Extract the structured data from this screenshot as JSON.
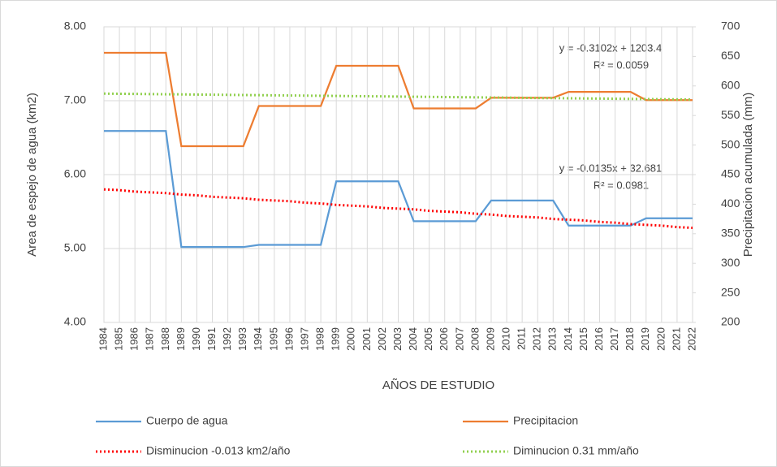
{
  "chart_data": {
    "type": "line",
    "categories": [
      "1984",
      "1985",
      "1986",
      "1987",
      "1988",
      "1989",
      "1990",
      "1991",
      "1992",
      "1993",
      "1994",
      "1995",
      "1996",
      "1997",
      "1998",
      "1999",
      "2000",
      "2001",
      "2002",
      "2003",
      "2004",
      "2005",
      "2006",
      "2007",
      "2008",
      "2009",
      "2010",
      "2011",
      "2012",
      "2013",
      "2014",
      "2015",
      "2016",
      "2017",
      "2018",
      "2019",
      "2020",
      "2021",
      "2022"
    ],
    "series": [
      {
        "name": "Cuerpo de agua",
        "color": "#5b9bd5",
        "style": "solid",
        "values": [
          6.59,
          6.59,
          6.59,
          6.59,
          6.59,
          5.02,
          5.02,
          5.02,
          5.02,
          5.02,
          5.05,
          5.05,
          5.05,
          5.05,
          5.05,
          5.91,
          5.91,
          5.91,
          5.91,
          5.91,
          5.37,
          5.37,
          5.37,
          5.37,
          5.37,
          5.65,
          5.65,
          5.65,
          5.65,
          5.65,
          5.31,
          5.31,
          5.31,
          5.31,
          5.31,
          5.41,
          5.41,
          5.41,
          5.41
        ]
      },
      {
        "name": "Precipitacion",
        "color": "#ed7d31",
        "style": "solid",
        "axis": "y2",
        "values": [
          656,
          656,
          656,
          656,
          656,
          498,
          498,
          498,
          498,
          498,
          566,
          566,
          566,
          566,
          566,
          634,
          634,
          634,
          634,
          634,
          562,
          562,
          562,
          562,
          562,
          580,
          580,
          580,
          580,
          580,
          590,
          590,
          590,
          590,
          590,
          576,
          576,
          576,
          576
        ]
      },
      {
        "name": "Disminucion -0.013 km2/año",
        "color": "#ff0000",
        "style": "dotted",
        "values": [
          5.8,
          5.79,
          5.77,
          5.76,
          5.75,
          5.73,
          5.72,
          5.7,
          5.69,
          5.68,
          5.66,
          5.65,
          5.64,
          5.62,
          5.61,
          5.59,
          5.58,
          5.57,
          5.55,
          5.54,
          5.53,
          5.51,
          5.5,
          5.49,
          5.47,
          5.46,
          5.44,
          5.43,
          5.42,
          5.4,
          5.39,
          5.38,
          5.36,
          5.35,
          5.33,
          5.32,
          5.31,
          5.29,
          5.28
        ]
      },
      {
        "name": "Diminucion 0.31 mm/año",
        "color": "#92d050",
        "style": "dotted",
        "axis": "y2",
        "values": [
          587.0,
          586.7,
          586.5,
          586.2,
          585.9,
          585.7,
          585.4,
          585.2,
          584.9,
          584.6,
          584.4,
          584.1,
          583.8,
          583.6,
          583.3,
          583.1,
          582.8,
          582.5,
          582.3,
          582.0,
          581.7,
          581.5,
          581.2,
          580.9,
          580.7,
          580.4,
          580.2,
          579.9,
          579.6,
          579.4,
          579.1,
          578.8,
          578.6,
          578.3,
          578.1,
          577.8,
          577.5,
          577.3,
          577.0
        ]
      }
    ],
    "xlabel": "AÑOS DE ESTUDIO",
    "ylabel": "Area de espejo de agua (km2)",
    "y2label": "Precipitacion acumulada (mm)",
    "ylim": [
      4,
      8
    ],
    "yticks": [
      {
        "value": 4,
        "label": "4.00"
      },
      {
        "value": 5,
        "label": "5.00"
      },
      {
        "value": 6,
        "label": "6.00"
      },
      {
        "value": 7,
        "label": "7.00"
      },
      {
        "value": 8,
        "label": "8.00"
      }
    ],
    "y2lim": [
      200,
      700
    ],
    "y2ticks": [
      200,
      250,
      300,
      350,
      400,
      450,
      500,
      550,
      600,
      650,
      700
    ],
    "annotations": [
      "y = -0.3102x + 1203.4",
      "R² = 0.0059",
      "y = -0.0135x + 32.681",
      "R² = 0.0981"
    ],
    "grid": true,
    "legend": "bottom"
  }
}
